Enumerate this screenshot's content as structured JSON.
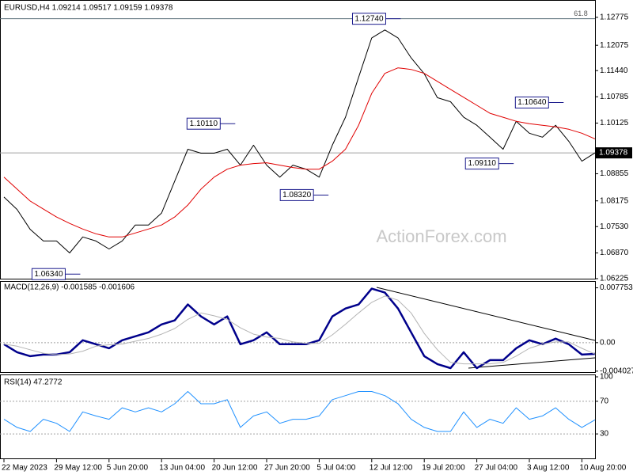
{
  "chart_data": [
    {
      "type": "line",
      "title": "EURUSD,H4  1.09214 1.09517 1.09159 1.09378",
      "xlim": [
        0,
        45
      ],
      "ylim": [
        1.06225,
        1.1315
      ],
      "yticks": [
        1.12775,
        1.12075,
        {
          "value": 1.1144,
          "label": "1.11440"
        },
        1.10785,
        1.10125,
        1.08855,
        1.08175,
        {
          "value": 1.0753,
          "label": "1.07530"
        },
        {
          "value": 1.0687,
          "label": "1.06870"
        },
        1.06225
      ],
      "series": [
        {
          "color": "#000000",
          "line_width": 1,
          "values": [
            1.0827,
            1.0796,
            1.0746,
            1.0717,
            1.0717,
            1.0687,
            1.0727,
            1.0717,
            1.0697,
            1.0717,
            1.0757,
            1.0757,
            1.0787,
            1.0867,
            1.0947,
            1.0937,
            1.0937,
            1.0947,
            1.0907,
            1.0957,
            1.0907,
            1.0877,
            1.0907,
            1.0897,
            1.0877,
            1.0957,
            1.1027,
            1.1127,
            1.1226,
            1.1246,
            1.1226,
            1.1176,
            1.1136,
            1.1076,
            1.1066,
            1.1027,
            1.1007,
            1.0977,
            1.0947,
            1.1017,
            1.0987,
            1.0977,
            1.1007,
            1.0967,
            1.0917,
            1.09378
          ]
        },
        {
          "color": "#e00000",
          "line_width": 1,
          "values": [
            1.0877,
            1.0847,
            1.0817,
            1.0797,
            1.0777,
            1.0761,
            1.0747,
            1.0735,
            1.0727,
            1.0727,
            1.0737,
            1.0747,
            1.0757,
            1.0777,
            1.0807,
            1.0847,
            1.0877,
            1.0897,
            1.0907,
            1.0911,
            1.0913,
            1.0907,
            1.0901,
            1.0897,
            1.0897,
            1.0917,
            1.0947,
            1.1007,
            1.1087,
            1.1137,
            1.1151,
            1.1147,
            1.1137,
            1.1117,
            1.1097,
            1.1077,
            1.1057,
            1.1037,
            1.1027,
            1.1017,
            1.1011,
            1.1007,
            1.1003,
            1.0997,
            1.0987,
            1.0973
          ]
        }
      ],
      "fib_level": {
        "value": 1.1274,
        "label": "61.8"
      },
      "current": {
        "value": 1.09378,
        "label": "1.09378"
      },
      "annotations": [
        {
          "label": "1.12740",
          "value": 1.1274,
          "x": 27.8
        },
        {
          "label": "1.10110",
          "value": 1.1011,
          "x": 15.2
        },
        {
          "label": "1.08320",
          "value": 1.0832,
          "x": 22.3
        },
        {
          "label": "1.06340",
          "value": 1.0634,
          "x": 3.4
        },
        {
          "label": "1.09110",
          "value": 1.0911,
          "x": 36.4
        },
        {
          "label": "1.10640",
          "value": 1.1064,
          "x": 40.2
        }
      ],
      "watermark": "ActionForex.com"
    },
    {
      "type": "line",
      "title": "MACD(12,26,9) -0.001585 -0.001606",
      "xlim": [
        0,
        45
      ],
      "ylim": [
        -0.00416,
        0.0086
      ],
      "yticks": [
        0.007753,
        {
          "value": 0,
          "label": "0.00"
        },
        -0.004027
      ],
      "levels": [
        0
      ],
      "series": [
        {
          "color": "#00008b",
          "line_width": 2.5,
          "values": [
            -0.00022,
            -0.00135,
            -0.00191,
            -0.00169,
            -0.00169,
            -0.00135,
            0.00034,
            -0.00022,
            -0.00079,
            0.00034,
            0.0009,
            0.00146,
            0.00258,
            0.00315,
            0.0054,
            0.00371,
            0.00258,
            0.00371,
            -0.00022,
            0.00034,
            0.00146,
            -0.00022,
            -0.00022,
            -0.00022,
            0.00034,
            0.00371,
            0.00483,
            0.0054,
            0.00764,
            0.00708,
            0.00483,
            0.00146,
            -0.00191,
            -0.00303,
            -0.0036,
            -0.00135,
            -0.0036,
            -0.00247,
            -0.00247,
            -0.00079,
            0.00034,
            -0.00022,
            0.00056,
            -0.00022,
            -0.00169,
            -0.001585
          ]
        },
        {
          "color": "#b4b4b4",
          "line_width": 1,
          "values": [
            -0.0002,
            -0.0005,
            -0.001,
            -0.0015,
            -0.0017,
            -0.0016,
            -0.0012,
            -0.0005,
            -0.0003,
            -0.0002,
            0.0002,
            0.0006,
            0.0012,
            0.002,
            0.0033,
            0.0042,
            0.0038,
            0.0033,
            0.0021,
            0.0012,
            0.0008,
            0.0006,
            0.0001,
            -0.0001,
            -0.0001,
            0.0011,
            0.0026,
            0.0042,
            0.0057,
            0.0066,
            0.006,
            0.0042,
            0.0013,
            -0.001,
            -0.0028,
            -0.003,
            -0.003,
            -0.003,
            -0.0028,
            -0.0019,
            -0.0008,
            -0.0002,
            0.0001,
            0.0001,
            -0.0008,
            -0.001606
          ]
        }
      ]
    },
    {
      "type": "line",
      "title": "RSI(14) 47.2772",
      "xlim": [
        0,
        45
      ],
      "ylim": [
        0,
        100
      ],
      "yticks": [
        100,
        70,
        30
      ],
      "levels": [
        70,
        30
      ],
      "series": [
        {
          "color": "#1e90ff",
          "line_width": 1,
          "values": [
            48,
            38,
            33,
            48,
            43,
            33,
            57,
            52,
            48,
            62,
            57,
            62,
            57,
            67,
            82,
            67,
            67,
            72,
            38,
            52,
            57,
            43,
            48,
            48,
            52,
            72,
            77,
            82,
            82,
            77,
            67,
            48,
            38,
            33,
            33,
            57,
            38,
            48,
            43,
            62,
            48,
            52,
            62,
            48,
            38,
            47.2772
          ]
        }
      ],
      "categories": [
        "22 May 2023",
        null,
        null,
        null,
        "29 May 12:00",
        null,
        null,
        null,
        "5 Jun 20:00",
        null,
        null,
        null,
        "13 Jun 04:00",
        null,
        null,
        null,
        "20 Jun 12:00",
        null,
        null,
        null,
        "27 Jun 20:00",
        null,
        null,
        null,
        "5 Jul 04:00",
        null,
        null,
        null,
        "12 Jul 12:00",
        null,
        null,
        null,
        "19 Jul 20:00",
        null,
        null,
        null,
        "27 Jul 04:00",
        null,
        null,
        null,
        "3 Aug 12:00",
        null,
        null,
        null,
        "10 Aug 20:00",
        null
      ]
    }
  ]
}
